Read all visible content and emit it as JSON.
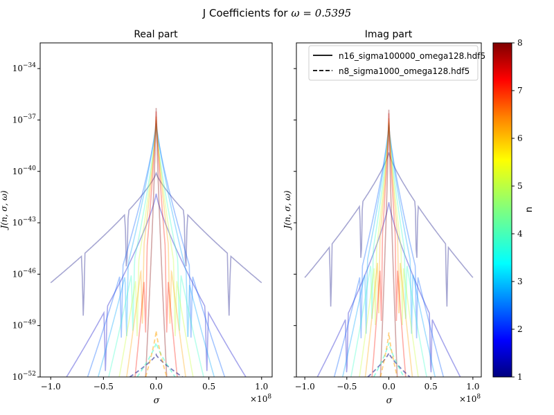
{
  "figure": {
    "suptitle_text": "J Coefficients for ",
    "suptitle_math": "ω = 0.5395"
  },
  "chart_data": [
    {
      "type": "line",
      "title": "Real part",
      "xlabel": "σ",
      "ylabel": "J(n, σ, ω)",
      "x_offset_label": "×10",
      "x_offset_exp": "8",
      "xlim": [
        -1.1,
        1.1
      ],
      "ylim_log10": [
        -52,
        -32.5
      ],
      "yscale": "log",
      "x_ticks": [
        -1.0,
        -0.5,
        0.0,
        0.5,
        1.0
      ],
      "x_tick_labels": [
        "−1.0",
        "−0.5",
        "0.0",
        "0.5",
        "1.0"
      ],
      "y_tick_exponents": [
        -52,
        -49,
        -46,
        -43,
        -40,
        -37,
        -34
      ],
      "y_tick_base": "10",
      "y_tick_labels": [
        "−52",
        "−49",
        "−46",
        "−43",
        "−40",
        "−37",
        "−34"
      ],
      "grid": false,
      "series": [
        {
          "n": 1,
          "file": "n16",
          "peak": -40.1,
          "sigma_width": 1.0,
          "tail": -46.5,
          "dips": [
            -0.69,
            0.69,
            -0.28,
            0.28
          ]
        },
        {
          "n": 1.5,
          "file": "n16",
          "peak": -41.3,
          "sigma_width": 0.85,
          "tail": -52,
          "dips": [
            -0.48,
            0.48
          ]
        },
        {
          "n": 2.5,
          "file": "n16",
          "peak": -37.2,
          "sigma_width": 0.65,
          "tail": -52,
          "dips": [
            -0.33,
            0.33
          ]
        },
        {
          "n": 3,
          "file": "n16",
          "peak": -37.0,
          "sigma_width": 0.55,
          "tail": -52,
          "dips": [
            -0.28,
            0.3
          ]
        },
        {
          "n": 4,
          "file": "n16",
          "peak": -37.3,
          "sigma_width": 0.45,
          "tail": -52,
          "dips": [
            -0.22,
            0.22
          ]
        },
        {
          "n": 5,
          "file": "n16",
          "peak": -37.0,
          "sigma_width": 0.35,
          "tail": -52,
          "dips": [
            -0.18,
            0.18
          ]
        },
        {
          "n": 6,
          "file": "n16",
          "peak": -36.8,
          "sigma_width": 0.28,
          "tail": -52,
          "dips": [
            -0.13,
            0.13
          ]
        },
        {
          "n": 7,
          "file": "n16",
          "peak": -36.5,
          "sigma_width": 0.2,
          "tail": -52,
          "dips": [
            -0.1,
            0.1
          ]
        },
        {
          "n": 8,
          "file": "n16",
          "peak": -36.3,
          "sigma_width": 0.1,
          "tail": -52,
          "dips": []
        },
        {
          "n": 1,
          "file": "n8",
          "peak": -50.7,
          "sigma_width": 0.25,
          "tail": -52,
          "dips": []
        },
        {
          "n": 4,
          "file": "n8",
          "peak": -50.0,
          "sigma_width": 0.18,
          "tail": -52,
          "dips": []
        },
        {
          "n": 6,
          "file": "n8",
          "peak": -49.3,
          "sigma_width": 0.1,
          "tail": -52,
          "dips": []
        }
      ]
    },
    {
      "type": "line",
      "title": "Imag part",
      "xlabel": "σ",
      "ylabel": "J(n, σ, ω)",
      "x_offset_label": "×10",
      "x_offset_exp": "8",
      "xlim": [
        -1.1,
        1.1
      ],
      "ylim_log10": [
        -52,
        -32.5
      ],
      "yscale": "log",
      "x_ticks": [
        -1.0,
        -0.5,
        0.0,
        0.5,
        1.0
      ],
      "x_tick_labels": [
        "−1.0",
        "−0.5",
        "0.0",
        "0.5",
        "1.0"
      ],
      "grid": false,
      "legend": {
        "placement": "top-right",
        "entries": [
          {
            "label": "n16_sigma100000_omega128.hdf5",
            "style": "solid"
          },
          {
            "label": "n8_sigma1000_omega128.hdf5",
            "style": "dashed"
          }
        ]
      },
      "series": [
        {
          "n": 1,
          "file": "n16",
          "peak": -38.9,
          "sigma_width": 1.0,
          "tail": -46.2,
          "dips": [
            -0.69,
            0.69,
            -0.33,
            0.33
          ]
        },
        {
          "n": 1.5,
          "file": "n16",
          "peak": -41.8,
          "sigma_width": 0.85,
          "tail": -52,
          "dips": [
            -0.5,
            0.5
          ]
        },
        {
          "n": 2.5,
          "file": "n16",
          "peak": -37.3,
          "sigma_width": 0.65,
          "tail": -52,
          "dips": [
            -0.33,
            0.33
          ]
        },
        {
          "n": 3,
          "file": "n16",
          "peak": -37.2,
          "sigma_width": 0.55,
          "tail": -52,
          "dips": [
            -0.27,
            0.27
          ]
        },
        {
          "n": 4,
          "file": "n16",
          "peak": -37.3,
          "sigma_width": 0.45,
          "tail": -52,
          "dips": [
            -0.2,
            0.2
          ]
        },
        {
          "n": 5,
          "file": "n16",
          "peak": -37.1,
          "sigma_width": 0.35,
          "tail": -52,
          "dips": [
            -0.16,
            0.16
          ]
        },
        {
          "n": 6,
          "file": "n16",
          "peak": -36.9,
          "sigma_width": 0.28,
          "tail": -52,
          "dips": [
            -0.12,
            0.12
          ]
        },
        {
          "n": 7,
          "file": "n16",
          "peak": -36.6,
          "sigma_width": 0.2,
          "tail": -52,
          "dips": [
            -0.09,
            0.09
          ]
        },
        {
          "n": 8,
          "file": "n16",
          "peak": -36.4,
          "sigma_width": 0.1,
          "tail": -52,
          "dips": []
        },
        {
          "n": 1,
          "file": "n8",
          "peak": -50.6,
          "sigma_width": 0.25,
          "tail": -52,
          "dips": []
        },
        {
          "n": 4,
          "file": "n8",
          "peak": -50.0,
          "sigma_width": 0.18,
          "tail": -52,
          "dips": []
        },
        {
          "n": 6,
          "file": "n8",
          "peak": -49.4,
          "sigma_width": 0.1,
          "tail": -52,
          "dips": []
        }
      ]
    }
  ],
  "colorbar": {
    "label": "n",
    "min": 1,
    "max": 8,
    "ticks": [
      "1",
      "2",
      "3",
      "4",
      "5",
      "6",
      "7",
      "8"
    ],
    "colormap": "jet"
  },
  "colors": {
    "axes": "#000000",
    "legend_border": "#cccccc",
    "jet_stops": [
      "#00007f",
      "#0000ff",
      "#007fff",
      "#00ffff",
      "#7fff7f",
      "#ffff00",
      "#ff7f00",
      "#ff0000",
      "#7f0000"
    ]
  }
}
